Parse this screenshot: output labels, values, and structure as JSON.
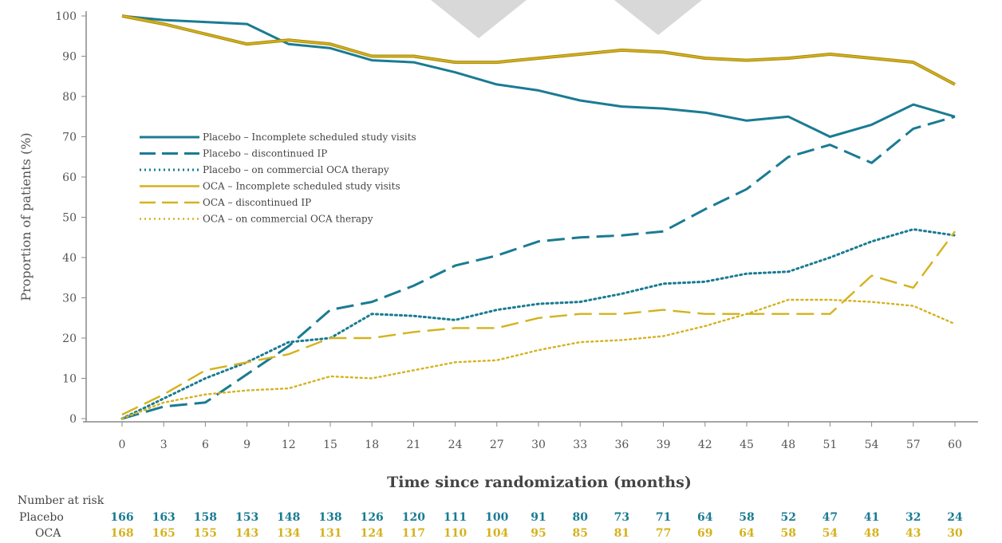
{
  "colors": {
    "placebo": "#1a7b93",
    "oca": "#d4b21d",
    "axis": "#888888",
    "text": "#555555"
  },
  "chart_data": {
    "type": "line",
    "xlabel": "Time since randomization (months)",
    "ylabel": "Proportion of patients (%)",
    "xlim": [
      0,
      60
    ],
    "ylim": [
      0,
      100
    ],
    "x": [
      0,
      3,
      6,
      9,
      12,
      15,
      18,
      21,
      24,
      27,
      30,
      33,
      36,
      39,
      42,
      45,
      48,
      51,
      54,
      57,
      60
    ],
    "xticks": [
      "0",
      "3",
      "6",
      "9",
      "12",
      "15",
      "18",
      "21",
      "24",
      "27",
      "30",
      "33",
      "36",
      "39",
      "42",
      "45",
      "48",
      "51",
      "54",
      "57",
      "60"
    ],
    "yticks": [
      "0",
      "10",
      "20",
      "30",
      "40",
      "50",
      "60",
      "70",
      "80",
      "90",
      "100"
    ],
    "legend_position": "upper-left",
    "grid": false,
    "series": [
      {
        "name": "Placebo – Incomplete scheduled study visits",
        "group": "placebo",
        "style": "solid",
        "values": [
          100,
          99,
          98.5,
          98,
          93,
          92,
          89,
          88.5,
          86,
          83,
          81.5,
          79,
          77.5,
          77,
          76,
          74,
          75,
          70,
          73,
          78,
          75
        ]
      },
      {
        "name": "Placebo – discontinued IP",
        "group": "placebo",
        "style": "dashed",
        "values": [
          0,
          3,
          4,
          11,
          18,
          27,
          29,
          33,
          38,
          40.5,
          44,
          45,
          45.5,
          46.5,
          52,
          57,
          65,
          68,
          63.5,
          72,
          75
        ]
      },
      {
        "name": "Placebo – on commercial OCA therapy",
        "group": "placebo",
        "style": "dotted",
        "values": [
          0,
          5,
          10,
          14,
          19,
          20,
          26,
          25.5,
          24.5,
          27,
          28.5,
          29,
          31,
          33.5,
          34,
          36,
          36.5,
          40,
          44,
          47,
          45.5
        ]
      },
      {
        "name": "OCA – Incomplete scheduled study visits",
        "group": "oca",
        "style": "solid",
        "values": [
          100,
          98,
          95.5,
          93,
          94,
          93,
          90,
          90,
          88.5,
          88.5,
          89.5,
          90.5,
          91.5,
          91,
          89.5,
          89,
          89.5,
          90.5,
          89.5,
          88.5,
          83
        ]
      },
      {
        "name": "OCA – discontinued IP",
        "group": "oca",
        "style": "dashed",
        "values": [
          1,
          6,
          12,
          14,
          16,
          20,
          20,
          21.5,
          22.5,
          22.5,
          25,
          26,
          26,
          27,
          26,
          26,
          26,
          26,
          35.5,
          32.5,
          46.5
        ]
      },
      {
        "name": "OCA – on commercial OCA therapy",
        "group": "oca",
        "style": "dotted",
        "values": [
          0,
          4,
          6,
          7,
          7.5,
          10.5,
          10,
          12,
          14,
          14.5,
          17,
          19,
          19.5,
          20.5,
          23,
          26,
          29.5,
          29.5,
          29,
          28,
          23.5
        ]
      }
    ]
  },
  "risk_table": {
    "title": "Number at risk",
    "rows": [
      {
        "label": "Placebo",
        "group": "placebo",
        "values": [
          "166",
          "163",
          "158",
          "153",
          "148",
          "138",
          "126",
          "120",
          "111",
          "100",
          "91",
          "80",
          "73",
          "71",
          "64",
          "58",
          "52",
          "47",
          "41",
          "32",
          "24"
        ]
      },
      {
        "label": "OCA",
        "group": "oca",
        "values": [
          "168",
          "165",
          "155",
          "143",
          "134",
          "131",
          "124",
          "117",
          "110",
          "104",
          "95",
          "85",
          "81",
          "77",
          "69",
          "64",
          "58",
          "54",
          "48",
          "43",
          "30"
        ]
      }
    ]
  }
}
